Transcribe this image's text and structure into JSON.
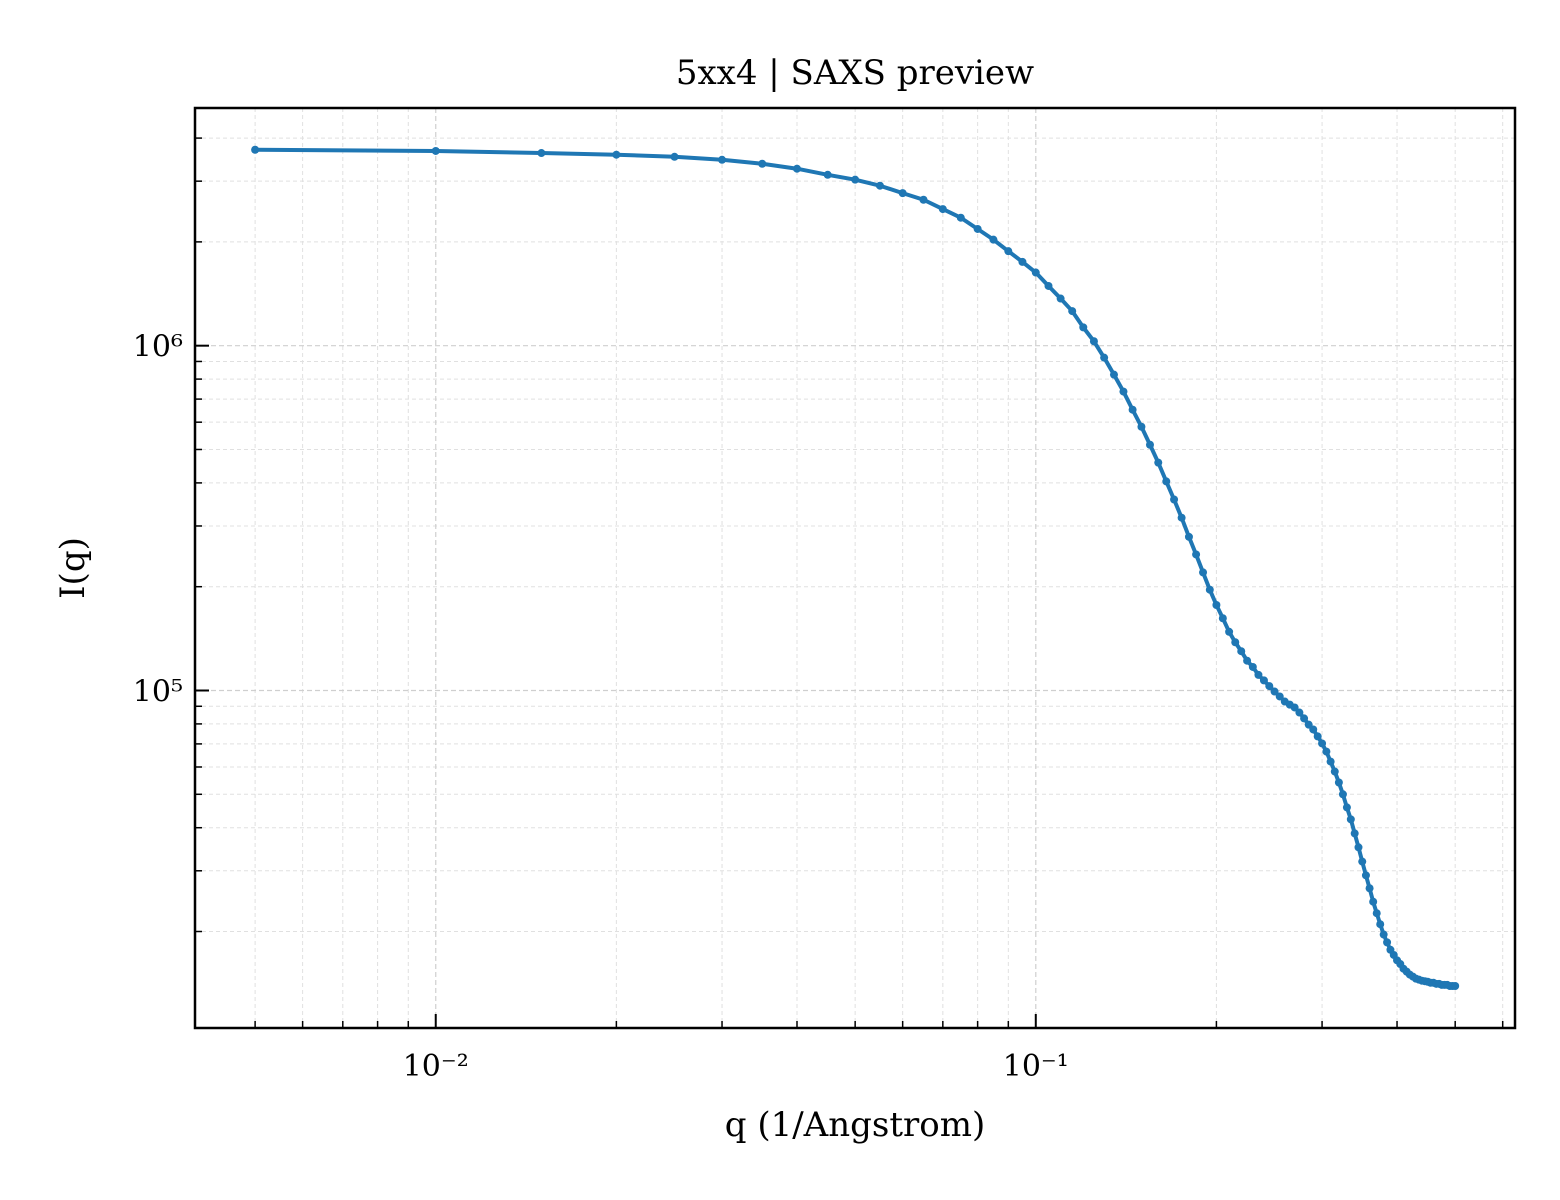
{
  "chart_data": {
    "type": "line",
    "title": "5xx4 | SAXS preview",
    "xlabel": "q (1/Angstrom)",
    "ylabel": "I(q)",
    "xscale": "log",
    "yscale": "log",
    "grid": true,
    "xlim": [
      0.00397,
      0.629
    ],
    "ylim": [
      10500,
      4890000
    ],
    "xticks": [
      {
        "value": 0.01,
        "label": "10⁻²"
      },
      {
        "value": 0.1,
        "label": "10⁻¹"
      }
    ],
    "yticks": [
      {
        "value": 100000,
        "label": "10⁵"
      },
      {
        "value": 1000000,
        "label": "10⁶"
      }
    ],
    "xticks_minor": [
      0.005,
      0.006,
      0.007,
      0.008,
      0.009,
      0.02,
      0.03,
      0.04,
      0.05,
      0.06,
      0.07,
      0.08,
      0.09,
      0.2,
      0.3,
      0.4,
      0.5,
      0.6
    ],
    "yticks_minor": [
      20000,
      30000,
      40000,
      50000,
      60000,
      70000,
      80000,
      90000,
      200000,
      300000,
      400000,
      500000,
      600000,
      700000,
      800000,
      900000,
      2000000,
      3000000,
      4000000
    ],
    "x": [
      0.005,
      0.01,
      0.015,
      0.02,
      0.025,
      0.03,
      0.035,
      0.04,
      0.045,
      0.05,
      0.055,
      0.06,
      0.065,
      0.07,
      0.075,
      0.08,
      0.085,
      0.09,
      0.095,
      0.1,
      0.105,
      0.11,
      0.115,
      0.12,
      0.125,
      0.13,
      0.135,
      0.14,
      0.145,
      0.15,
      0.155,
      0.16,
      0.165,
      0.17,
      0.175,
      0.18,
      0.185,
      0.19,
      0.195,
      0.2,
      0.205,
      0.21,
      0.215,
      0.22,
      0.225,
      0.23,
      0.235,
      0.24,
      0.245,
      0.25,
      0.255,
      0.26,
      0.265,
      0.27,
      0.275,
      0.28,
      0.285,
      0.29,
      0.295,
      0.3,
      0.305,
      0.31,
      0.315,
      0.32,
      0.325,
      0.33,
      0.335,
      0.34,
      0.345,
      0.35,
      0.355,
      0.36,
      0.365,
      0.37,
      0.375,
      0.38,
      0.385,
      0.39,
      0.395,
      0.4,
      0.405,
      0.41,
      0.415,
      0.42,
      0.425,
      0.43,
      0.435,
      0.44,
      0.445,
      0.45,
      0.455,
      0.46,
      0.465,
      0.47,
      0.475,
      0.48,
      0.485,
      0.49,
      0.495,
      0.5
    ],
    "series": [
      {
        "color": "#1f77b4",
        "values": [
          3700000,
          3670000,
          3620000,
          3580000,
          3530000,
          3460000,
          3370000,
          3260000,
          3130000,
          3030000,
          2910000,
          2770000,
          2650000,
          2490000,
          2350000,
          2180000,
          2030000,
          1880000,
          1750000,
          1630000,
          1490000,
          1370000,
          1260000,
          1130000,
          1030000,
          923000,
          824000,
          736000,
          652000,
          582000,
          516000,
          458000,
          404000,
          358000,
          317000,
          279000,
          248000,
          220000,
          196000,
          177000,
          162000,
          148000,
          138000,
          130000,
          122000,
          117000,
          111000,
          107000,
          103000,
          99300,
          96100,
          92900,
          91000,
          89300,
          86300,
          83000,
          79600,
          77100,
          73600,
          70200,
          66500,
          62200,
          58200,
          54100,
          50000,
          45800,
          42300,
          38500,
          35100,
          31900,
          29100,
          26700,
          24400,
          22600,
          21000,
          19600,
          18600,
          17700,
          17100,
          16500,
          16100,
          15600,
          15300,
          15000,
          14800,
          14600,
          14500,
          14400,
          14350,
          14300,
          14200,
          14200,
          14100,
          14100,
          14000,
          14000,
          14000,
          13900,
          13900,
          13900
        ]
      }
    ]
  }
}
